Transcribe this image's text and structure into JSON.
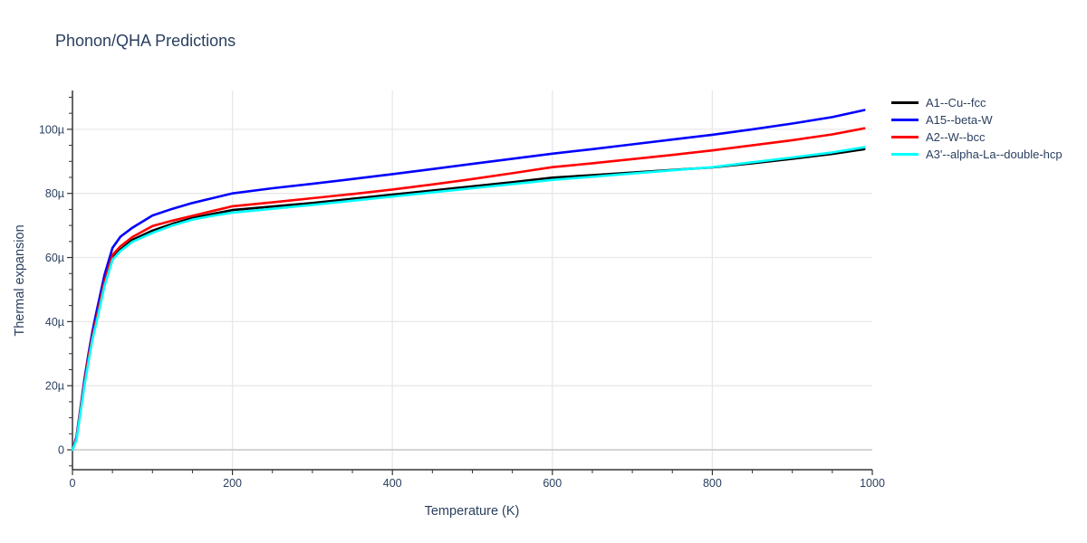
{
  "chart_data": {
    "type": "line",
    "title": "Phonon/QHA Predictions",
    "xlabel": "Temperature (K)",
    "ylabel": "Thermal expansion",
    "x_range": [
      0,
      1000
    ],
    "y_range_microns": [
      -6.2,
      112.1
    ],
    "grid": true,
    "legend_position": "top-right-outside",
    "x_tick_values": [
      0,
      200,
      400,
      600,
      800,
      1000
    ],
    "x_tick_labels": [
      "0",
      "200",
      "400",
      "600",
      "800",
      "1000"
    ],
    "x_minor_tick_step": 50,
    "y_tick_values": [
      0,
      20,
      40,
      60,
      80,
      100
    ],
    "y_tick_labels": [
      "0",
      "20µ",
      "40µ",
      "60µ",
      "80µ",
      "100µ"
    ],
    "y_minor_tick_step": 5,
    "x": [
      0,
      5,
      10,
      15,
      20,
      25,
      30,
      40,
      50,
      60,
      75,
      100,
      125,
      150,
      175,
      200,
      250,
      300,
      350,
      400,
      450,
      500,
      550,
      600,
      650,
      700,
      750,
      800,
      850,
      900,
      950,
      990
    ],
    "series": [
      {
        "name": "A1--Cu--fcc",
        "color": "#000000",
        "values": [
          0,
          3.5,
          12,
          20.5,
          28,
          35,
          40.2,
          51.5,
          59.8,
          62.5,
          65.5,
          68.4,
          70.5,
          72.3,
          73.6,
          74.8,
          75.9,
          77,
          78.3,
          79.6,
          80.9,
          82.2,
          83.5,
          84.9,
          85.7,
          86.5,
          87.3,
          88.1,
          89.4,
          90.8,
          92.3,
          93.8
        ]
      },
      {
        "name": "A15--beta-W",
        "color": "#0000ff",
        "values": [
          0,
          4,
          13,
          22,
          30,
          37,
          43,
          54.5,
          63,
          66.5,
          69.3,
          73.1,
          75.2,
          77,
          78.5,
          80,
          81.6,
          83,
          84.5,
          86,
          87.6,
          89.2,
          90.8,
          92.4,
          93.8,
          95.3,
          96.8,
          98.3,
          100,
          101.8,
          103.8,
          106
        ]
      },
      {
        "name": "A2--W--bcc",
        "color": "#ff0000",
        "values": [
          0,
          3.5,
          12.5,
          21,
          29,
          35.5,
          41,
          52.5,
          60.8,
          63.5,
          66.4,
          69.8,
          71.5,
          73,
          74.5,
          76,
          77.2,
          78.5,
          79.8,
          81.2,
          82.8,
          84.5,
          86.3,
          88.2,
          89.4,
          90.7,
          92,
          93.4,
          95,
          96.6,
          98.4,
          100.3
        ]
      },
      {
        "name": "A3'--alpha-La--double-hcp",
        "color": "#00ffff",
        "values": [
          0,
          3,
          11.5,
          20,
          27.5,
          34.5,
          39.7,
          51,
          59.3,
          62,
          64.9,
          67.7,
          70,
          71.8,
          73,
          74,
          75.2,
          76.4,
          77.7,
          79,
          80.3,
          81.6,
          82.9,
          84.2,
          85.2,
          86.2,
          87.2,
          88.2,
          89.7,
          91.2,
          92.8,
          94.4
        ]
      }
    ],
    "colors": {
      "text": "#2a3f5f",
      "gridline": "#e8e8e8",
      "zeroline": "#cccccc",
      "axis": "#333333",
      "background": "#ffffff"
    }
  }
}
